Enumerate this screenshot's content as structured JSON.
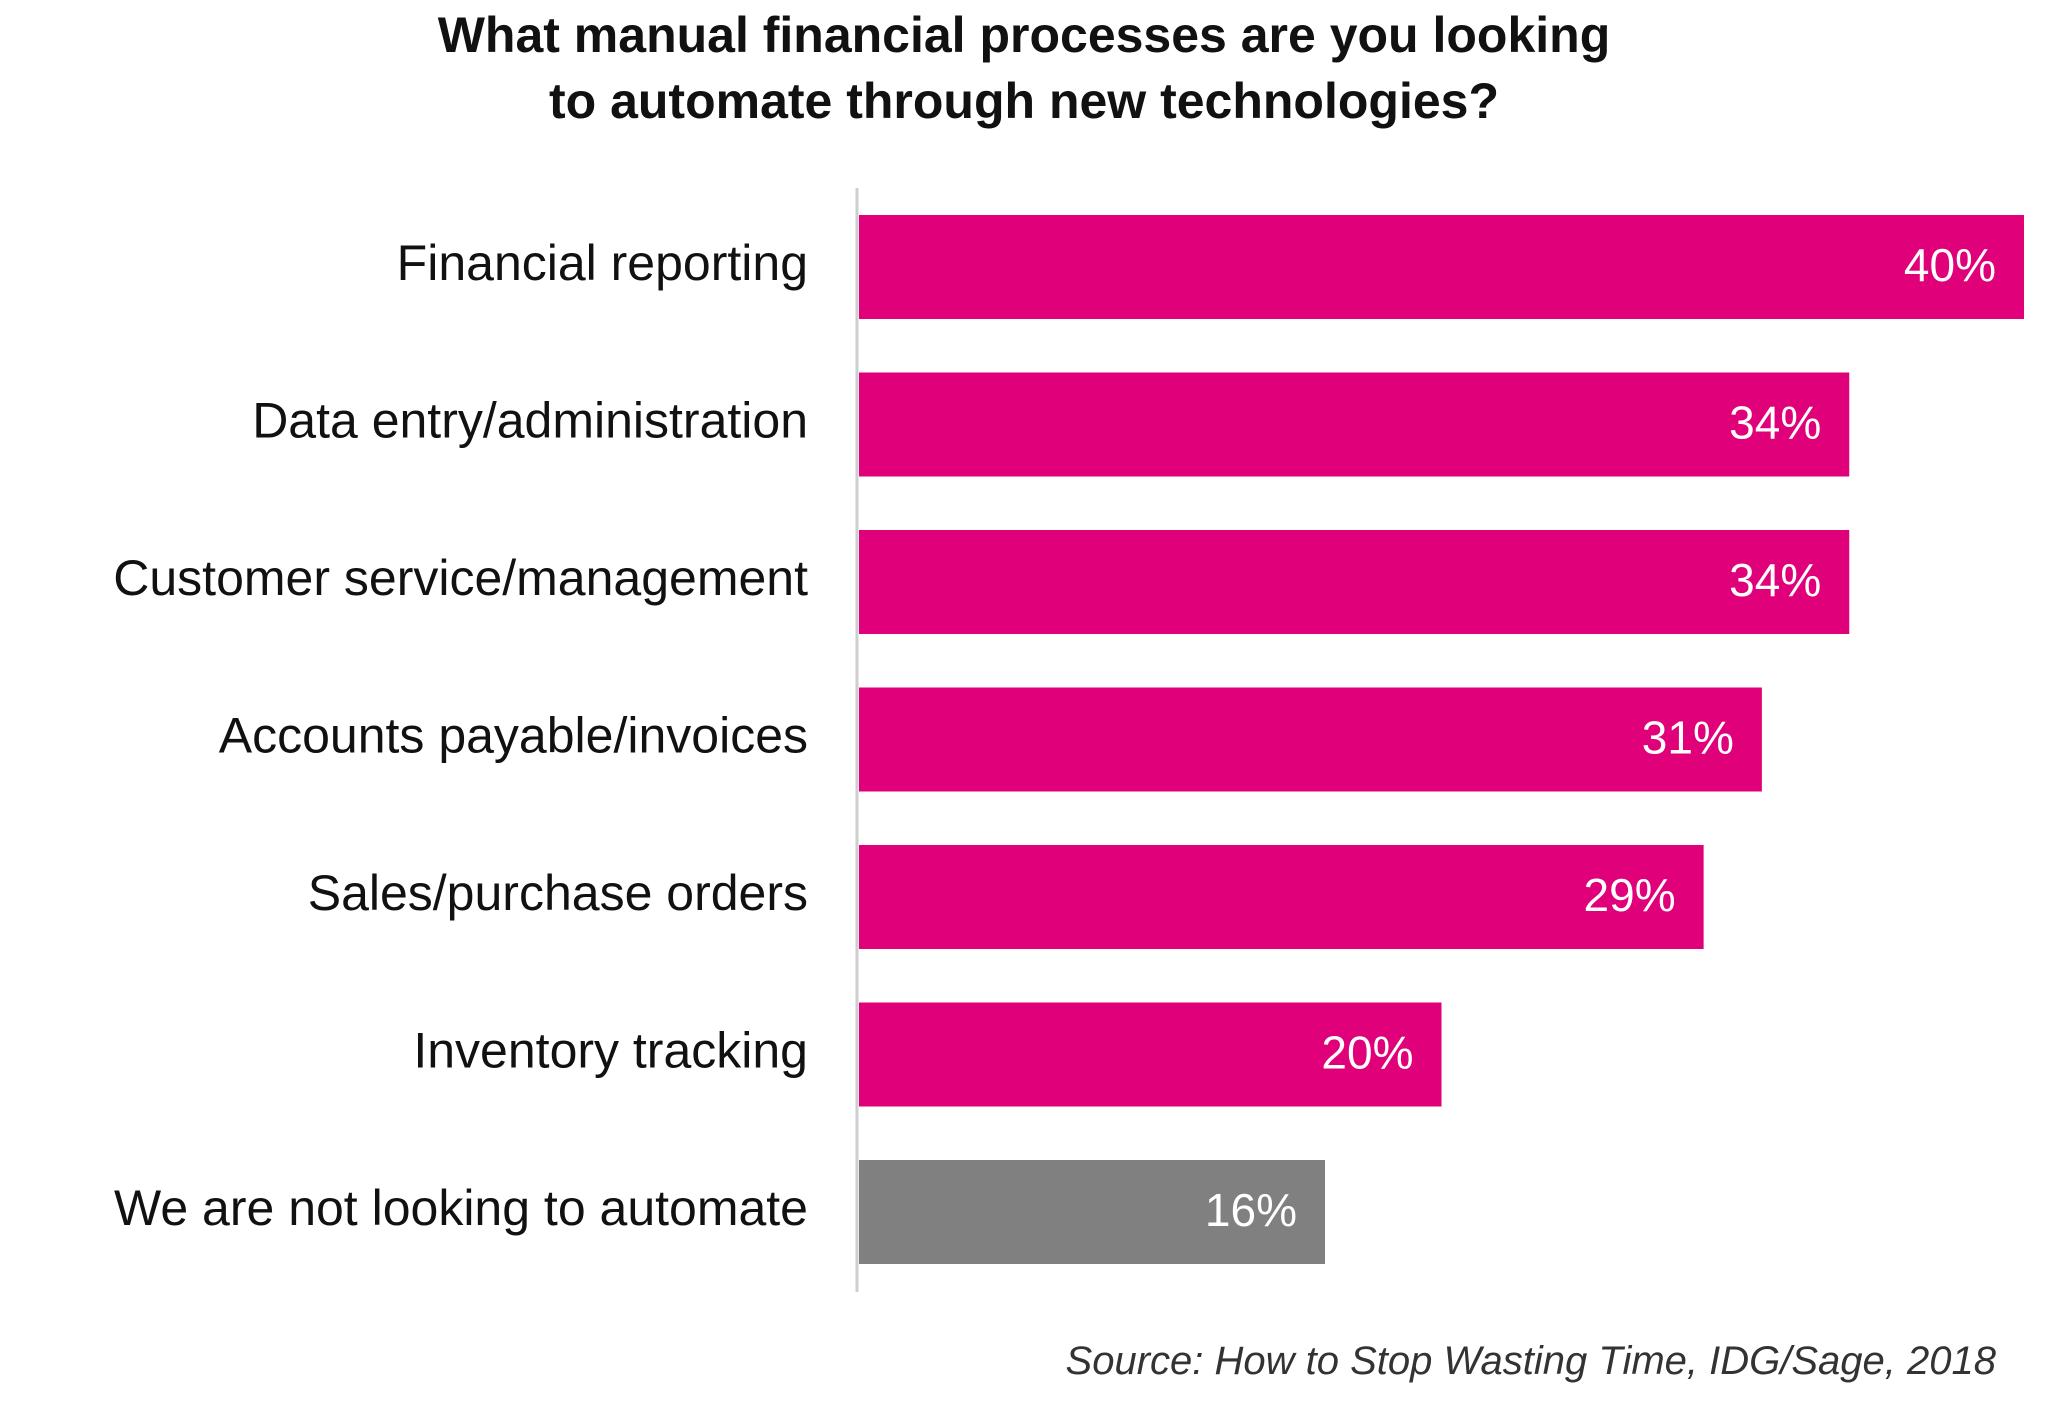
{
  "chart_data": {
    "type": "bar",
    "orientation": "horizontal",
    "title_lines": [
      "What manual financial processes are you looking",
      "to automate through new technologies?"
    ],
    "categories": [
      "Financial reporting",
      "Data entry/administration",
      "Customer service/management",
      "Accounts payable/invoices",
      "Sales/purchase orders",
      "Inventory tracking",
      "We are not looking to automate"
    ],
    "values": [
      40,
      34,
      34,
      31,
      29,
      20,
      16
    ],
    "value_labels": [
      "40%",
      "34%",
      "34%",
      "31%",
      "29%",
      "20%",
      "16%"
    ],
    "bar_colors": [
      "#e0007a",
      "#e0007a",
      "#e0007a",
      "#e0007a",
      "#e0007a",
      "#e0007a",
      "#808080"
    ],
    "xlim": [
      0,
      40
    ],
    "grid": false,
    "legend": "none",
    "source": "Source: How to Stop Wasting Time, IDG/Sage, 2018"
  }
}
